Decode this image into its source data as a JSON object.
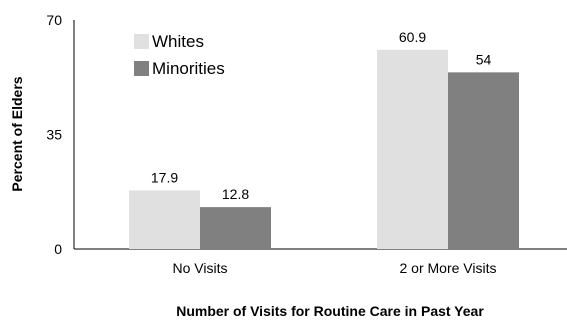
{
  "chart_data": {
    "type": "bar",
    "title": "",
    "xlabel": "Number of Visits for Routine Care in Past Year",
    "ylabel": "Percent of Elders",
    "categories": [
      "No Visits",
      "2 or More Visits"
    ],
    "series": [
      {
        "name": "Whites",
        "values": [
          17.9,
          60.9
        ],
        "color": "#e0e0e0"
      },
      {
        "name": "Minorities",
        "values": [
          12.8,
          54
        ],
        "color": "#808080"
      }
    ],
    "ylim": [
      0,
      70
    ],
    "yticks": [
      0,
      35,
      70
    ],
    "grid": false,
    "legend_position": "top-left"
  }
}
